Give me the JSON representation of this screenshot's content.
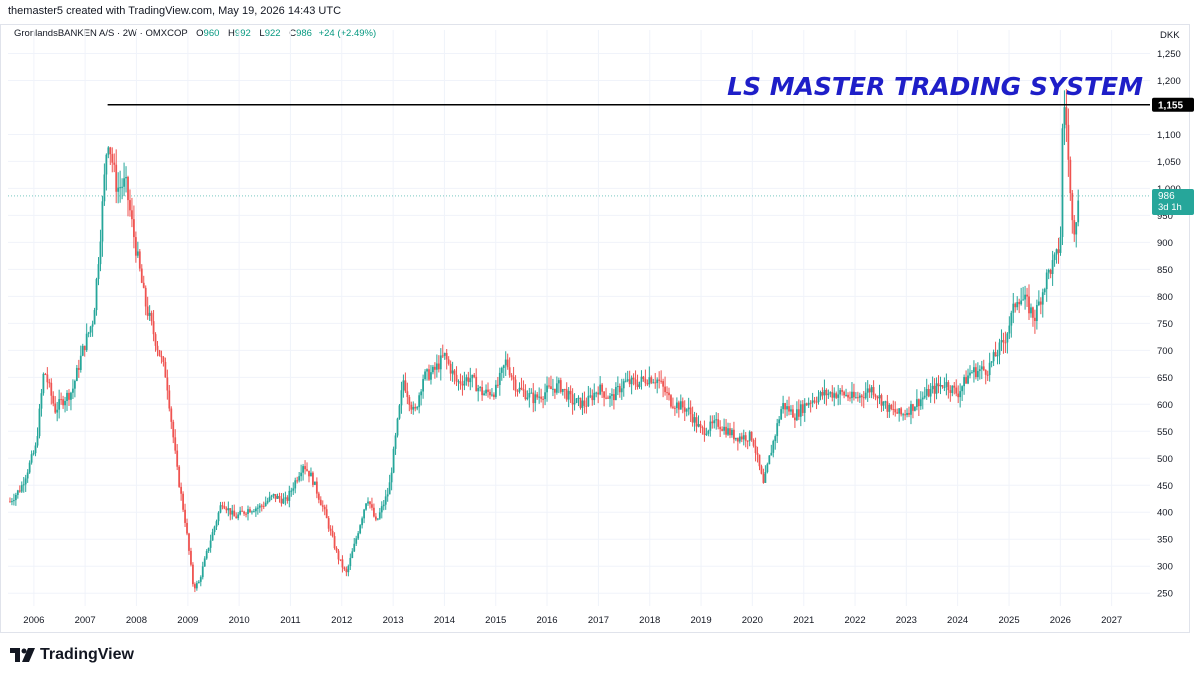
{
  "header": {
    "credit": "themaster5 created with TradingView.com, May 19, 2026 14:43 UTC"
  },
  "legend": {
    "symbol": "GronlandsBANKEN A/S · 2W · OMXCOP",
    "open_label": "O",
    "open": "960",
    "high_label": "H",
    "high": "992",
    "low_label": "L",
    "low": "922",
    "close_label": "C",
    "close": "986",
    "change": "+24 (+2.49%)"
  },
  "currency": "DKK",
  "annotation": "LS MASTER TRADING SYSTEM",
  "horizontal_line": {
    "price": 1155,
    "label": "1,155"
  },
  "last_price": {
    "price": 986,
    "label": "986",
    "countdown": "3d 1h"
  },
  "colors": {
    "up": "#26a69a",
    "down": "#ef5350",
    "annotation": "#1e1ec8",
    "line": "#000000",
    "price_tag": "#26a69a"
  },
  "brand": {
    "name": "TradingView"
  },
  "chart_data": {
    "type": "candlestick",
    "x_axis": {
      "type": "time",
      "range": [
        "2005-07-01",
        "2027-10-01"
      ],
      "ticks": [
        "2006",
        "2007",
        "2008",
        "2009",
        "2010",
        "2011",
        "2012",
        "2013",
        "2014",
        "2015",
        "2016",
        "2017",
        "2018",
        "2019",
        "2020",
        "2021",
        "2022",
        "2023",
        "2024",
        "2025",
        "2026",
        "2027"
      ]
    },
    "y_axis": {
      "range": [
        230,
        1275
      ],
      "position": "right",
      "ticks": [
        {
          "value": 250,
          "label": "250"
        },
        {
          "value": 300,
          "label": "300"
        },
        {
          "value": 350,
          "label": "350"
        },
        {
          "value": 400,
          "label": "400"
        },
        {
          "value": 450,
          "label": "450"
        },
        {
          "value": 500,
          "label": "500"
        },
        {
          "value": 550,
          "label": "550"
        },
        {
          "value": 600,
          "label": "600"
        },
        {
          "value": 650,
          "label": "650"
        },
        {
          "value": 700,
          "label": "700"
        },
        {
          "value": 750,
          "label": "750"
        },
        {
          "value": 800,
          "label": "800"
        },
        {
          "value": 850,
          "label": "850"
        },
        {
          "value": 900,
          "label": "900"
        },
        {
          "value": 950,
          "label": "950"
        },
        {
          "value": 1000,
          "label": "1,000"
        },
        {
          "value": 1050,
          "label": "1,050"
        },
        {
          "value": 1100,
          "label": "1,100"
        },
        {
          "value": 1200,
          "label": "1,200"
        },
        {
          "value": 1250,
          "label": "1,250"
        }
      ]
    },
    "interval": "2W",
    "price_path": [
      [
        "2005-07-15",
        420
      ],
      [
        "2005-10-01",
        445
      ],
      [
        "2006-01-15",
        520
      ],
      [
        "2006-03-15",
        665
      ],
      [
        "2006-06-01",
        590
      ],
      [
        "2006-08-01",
        610
      ],
      [
        "2006-10-01",
        625
      ],
      [
        "2006-12-15",
        700
      ],
      [
        "2007-03-01",
        760
      ],
      [
        "2007-04-15",
        900
      ],
      [
        "2007-06-10",
        1100
      ],
      [
        "2007-08-15",
        1000
      ],
      [
        "2007-10-15",
        1010
      ],
      [
        "2007-12-15",
        910
      ],
      [
        "2008-03-01",
        790
      ],
      [
        "2008-05-15",
        720
      ],
      [
        "2008-08-01",
        650
      ],
      [
        "2008-10-15",
        480
      ],
      [
        "2008-12-15",
        380
      ],
      [
        "2009-02-10",
        260
      ],
      [
        "2009-03-20",
        270
      ],
      [
        "2009-06-01",
        340
      ],
      [
        "2009-09-01",
        420
      ],
      [
        "2009-12-01",
        390
      ],
      [
        "2010-03-01",
        405
      ],
      [
        "2010-06-01",
        410
      ],
      [
        "2010-09-01",
        430
      ],
      [
        "2010-12-01",
        420
      ],
      [
        "2011-04-01",
        490
      ],
      [
        "2011-06-01",
        465
      ],
      [
        "2011-09-01",
        400
      ],
      [
        "2011-12-01",
        320
      ],
      [
        "2012-02-01",
        285
      ],
      [
        "2012-04-01",
        340
      ],
      [
        "2012-07-01",
        430
      ],
      [
        "2012-09-01",
        380
      ],
      [
        "2012-12-01",
        440
      ],
      [
        "2013-02-01",
        565
      ],
      [
        "2013-03-15",
        645
      ],
      [
        "2013-06-01",
        580
      ],
      [
        "2013-08-01",
        650
      ],
      [
        "2013-10-15",
        660
      ],
      [
        "2014-01-01",
        690
      ],
      [
        "2014-04-01",
        640
      ],
      [
        "2014-07-01",
        650
      ],
      [
        "2014-10-01",
        620
      ],
      [
        "2015-01-01",
        625
      ],
      [
        "2015-03-15",
        680
      ],
      [
        "2015-06-01",
        630
      ],
      [
        "2015-10-01",
        610
      ],
      [
        "2016-01-01",
        625
      ],
      [
        "2016-04-01",
        635
      ],
      [
        "2016-07-01",
        605
      ],
      [
        "2016-10-01",
        600
      ],
      [
        "2017-01-01",
        630
      ],
      [
        "2017-04-01",
        610
      ],
      [
        "2017-07-01",
        640
      ],
      [
        "2017-10-01",
        640
      ],
      [
        "2018-01-01",
        650
      ],
      [
        "2018-03-01",
        645
      ],
      [
        "2018-06-01",
        605
      ],
      [
        "2018-10-01",
        590
      ],
      [
        "2019-01-01",
        550
      ],
      [
        "2019-05-01",
        565
      ],
      [
        "2019-09-01",
        540
      ],
      [
        "2020-01-01",
        540
      ],
      [
        "2020-03-20",
        450
      ],
      [
        "2020-05-01",
        500
      ],
      [
        "2020-08-01",
        600
      ],
      [
        "2020-11-01",
        580
      ],
      [
        "2021-02-01",
        605
      ],
      [
        "2021-06-01",
        620
      ],
      [
        "2021-10-01",
        620
      ],
      [
        "2022-01-01",
        610
      ],
      [
        "2022-05-01",
        630
      ],
      [
        "2022-09-01",
        590
      ],
      [
        "2022-12-01",
        580
      ],
      [
        "2023-03-01",
        600
      ],
      [
        "2023-06-01",
        620
      ],
      [
        "2023-10-01",
        640
      ],
      [
        "2024-01-01",
        620
      ],
      [
        "2024-04-01",
        660
      ],
      [
        "2024-08-01",
        665
      ],
      [
        "2024-12-01",
        720
      ],
      [
        "2025-03-01",
        800
      ],
      [
        "2025-05-01",
        790
      ],
      [
        "2025-07-01",
        760
      ],
      [
        "2025-10-01",
        840
      ],
      [
        "2025-12-01",
        870
      ],
      [
        "2026-01-01",
        900
      ],
      [
        "2026-01-20",
        1160
      ],
      [
        "2026-02-10",
        1140
      ],
      [
        "2026-03-10",
        990
      ],
      [
        "2026-04-10",
        930
      ],
      [
        "2026-05-19",
        986
      ]
    ],
    "horizontal_levels": [
      1155
    ]
  }
}
